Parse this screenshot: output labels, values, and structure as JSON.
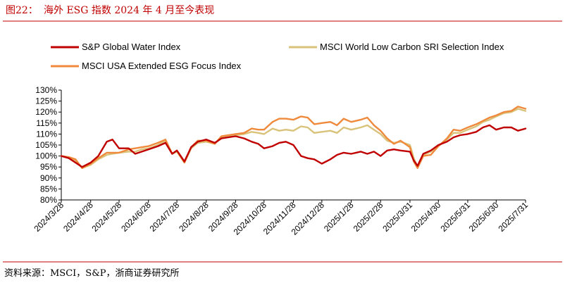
{
  "header": {
    "figure_label": "图22：",
    "title": "海外 ESG 指数 2024 年 4 月至今表现"
  },
  "footer": {
    "source": "资料来源：MSCI，S&P，浙商证券研究所"
  },
  "colors": {
    "accent": "#c00000",
    "series": [
      "#c00000",
      "#d9c37a",
      "#ef8a3c"
    ]
  },
  "chart_data": {
    "type": "line",
    "title": "",
    "xlabel": "",
    "ylabel": "",
    "ylim": [
      80,
      130
    ],
    "y_unit": "%",
    "y_ticks": [
      "80%",
      "85%",
      "90%",
      "95%",
      "100%",
      "105%",
      "110%",
      "115%",
      "120%",
      "125%",
      "130%"
    ],
    "x_ticks": [
      "2024/3/28",
      "2024/4/28",
      "2024/5/28",
      "2024/6/28",
      "2024/7/28",
      "2024/8/28",
      "2024/9/28",
      "2024/10/28",
      "2024/11/28",
      "2024/12/28",
      "2025/1/28",
      "2025/2/28",
      "2025/3/31",
      "2025/4/30",
      "2025/5/31",
      "2025/6/30",
      "2025/7/31"
    ],
    "grid": false,
    "legend_position": "top",
    "series": [
      {
        "name": "S&P Global Water Index",
        "points": [
          [
            "2024/3/28",
            100
          ],
          [
            "2024/4/5",
            99
          ],
          [
            "2024/4/12",
            97
          ],
          [
            "2024/4/19",
            95
          ],
          [
            "2024/4/28",
            97
          ],
          [
            "2024/5/6",
            100
          ],
          [
            "2024/5/15",
            106.5
          ],
          [
            "2024/5/21",
            107.5
          ],
          [
            "2024/5/28",
            103.5
          ],
          [
            "2024/6/7",
            103.5
          ],
          [
            "2024/6/14",
            101
          ],
          [
            "2024/6/21",
            102
          ],
          [
            "2024/6/28",
            103
          ],
          [
            "2024/7/8",
            104.5
          ],
          [
            "2024/7/16",
            106
          ],
          [
            "2024/7/23",
            101
          ],
          [
            "2024/7/28",
            102.5
          ],
          [
            "2024/8/5",
            97.5
          ],
          [
            "2024/8/12",
            104
          ],
          [
            "2024/8/19",
            106.5
          ],
          [
            "2024/8/28",
            107.5
          ],
          [
            "2024/9/6",
            106
          ],
          [
            "2024/9/13",
            108
          ],
          [
            "2024/9/20",
            108.5
          ],
          [
            "2024/9/28",
            109
          ],
          [
            "2024/10/7",
            108
          ],
          [
            "2024/10/15",
            106.5
          ],
          [
            "2024/10/22",
            105.5
          ],
          [
            "2024/10/28",
            103.5
          ],
          [
            "2024/11/6",
            104.5
          ],
          [
            "2024/11/13",
            106
          ],
          [
            "2024/11/20",
            106.5
          ],
          [
            "2024/11/28",
            105
          ],
          [
            "2024/12/6",
            100
          ],
          [
            "2024/12/13",
            99
          ],
          [
            "2024/12/20",
            98.5
          ],
          [
            "2024/12/28",
            96.5
          ],
          [
            "2025/1/6",
            98.5
          ],
          [
            "2025/1/13",
            100.5
          ],
          [
            "2025/1/20",
            101.5
          ],
          [
            "2025/1/28",
            101
          ],
          [
            "2025/2/7",
            102
          ],
          [
            "2025/2/14",
            101
          ],
          [
            "2025/2/21",
            102
          ],
          [
            "2025/2/28",
            100
          ],
          [
            "2025/3/7",
            102.5
          ],
          [
            "2025/3/14",
            103
          ],
          [
            "2025/3/21",
            102.5
          ],
          [
            "2025/3/31",
            102
          ],
          [
            "2025/4/4",
            98
          ],
          [
            "2025/4/8",
            95.5
          ],
          [
            "2025/4/14",
            101
          ],
          [
            "2025/4/22",
            102.5
          ],
          [
            "2025/4/30",
            105
          ],
          [
            "2025/5/9",
            106.5
          ],
          [
            "2025/5/16",
            108.5
          ],
          [
            "2025/5/23",
            109.5
          ],
          [
            "2025/5/31",
            110
          ],
          [
            "2025/6/9",
            111
          ],
          [
            "2025/6/16",
            113
          ],
          [
            "2025/6/23",
            114
          ],
          [
            "2025/6/30",
            112
          ],
          [
            "2025/7/8",
            113
          ],
          [
            "2025/7/16",
            113
          ],
          [
            "2025/7/23",
            111.5
          ],
          [
            "2025/7/31",
            112.5
          ]
        ]
      },
      {
        "name": "MSCI World Low Carbon SRI Selection Index",
        "points": [
          [
            "2024/3/28",
            100
          ],
          [
            "2024/4/5",
            99
          ],
          [
            "2024/4/12",
            98
          ],
          [
            "2024/4/19",
            94.5
          ],
          [
            "2024/4/28",
            96
          ],
          [
            "2024/5/6",
            98.5
          ],
          [
            "2024/5/15",
            100.5
          ],
          [
            "2024/5/21",
            101
          ],
          [
            "2024/5/28",
            101.5
          ],
          [
            "2024/6/7",
            102
          ],
          [
            "2024/6/14",
            102
          ],
          [
            "2024/6/21",
            103
          ],
          [
            "2024/6/28",
            103.5
          ],
          [
            "2024/7/8",
            105
          ],
          [
            "2024/7/16",
            107
          ],
          [
            "2024/7/23",
            101
          ],
          [
            "2024/7/28",
            102
          ],
          [
            "2024/8/5",
            97
          ],
          [
            "2024/8/12",
            103.5
          ],
          [
            "2024/8/19",
            106
          ],
          [
            "2024/8/28",
            106.5
          ],
          [
            "2024/9/6",
            105.5
          ],
          [
            "2024/9/13",
            108.5
          ],
          [
            "2024/9/20",
            109
          ],
          [
            "2024/9/28",
            109.5
          ],
          [
            "2024/10/7",
            110
          ],
          [
            "2024/10/15",
            111
          ],
          [
            "2024/10/22",
            110.5
          ],
          [
            "2024/10/28",
            110
          ],
          [
            "2024/11/6",
            112.5
          ],
          [
            "2024/11/13",
            111.5
          ],
          [
            "2024/11/20",
            112
          ],
          [
            "2024/11/28",
            111.5
          ],
          [
            "2024/12/6",
            113.5
          ],
          [
            "2024/12/13",
            113
          ],
          [
            "2024/12/20",
            110.5
          ],
          [
            "2024/12/28",
            111
          ],
          [
            "2025/1/6",
            111.5
          ],
          [
            "2025/1/13",
            110.5
          ],
          [
            "2025/1/20",
            113
          ],
          [
            "2025/1/28",
            112
          ],
          [
            "2025/2/7",
            113
          ],
          [
            "2025/2/14",
            114
          ],
          [
            "2025/2/21",
            112
          ],
          [
            "2025/2/28",
            110
          ],
          [
            "2025/3/7",
            107
          ],
          [
            "2025/3/14",
            106
          ],
          [
            "2025/3/21",
            106.5
          ],
          [
            "2025/3/31",
            105
          ],
          [
            "2025/4/4",
            99
          ],
          [
            "2025/4/8",
            95
          ],
          [
            "2025/4/14",
            100.5
          ],
          [
            "2025/4/22",
            102
          ],
          [
            "2025/4/30",
            104.5
          ],
          [
            "2025/5/9",
            107.5
          ],
          [
            "2025/5/16",
            110.5
          ],
          [
            "2025/5/23",
            110.5
          ],
          [
            "2025/5/31",
            112
          ],
          [
            "2025/6/9",
            113.5
          ],
          [
            "2025/6/16",
            115.5
          ],
          [
            "2025/6/23",
            116.5
          ],
          [
            "2025/6/30",
            118
          ],
          [
            "2025/7/8",
            119.5
          ],
          [
            "2025/7/16",
            120
          ],
          [
            "2025/7/23",
            121.5
          ],
          [
            "2025/7/31",
            120.5
          ]
        ]
      },
      {
        "name": "MSCI USA Extended ESG Focus Index",
        "points": [
          [
            "2024/3/28",
            100
          ],
          [
            "2024/4/5",
            99.5
          ],
          [
            "2024/4/12",
            98.5
          ],
          [
            "2024/4/19",
            94.5
          ],
          [
            "2024/4/28",
            96.5
          ],
          [
            "2024/5/6",
            99
          ],
          [
            "2024/5/15",
            101.5
          ],
          [
            "2024/5/21",
            101.5
          ],
          [
            "2024/5/28",
            101.5
          ],
          [
            "2024/6/7",
            103
          ],
          [
            "2024/6/14",
            103.5
          ],
          [
            "2024/6/21",
            104
          ],
          [
            "2024/6/28",
            104.5
          ],
          [
            "2024/7/8",
            106
          ],
          [
            "2024/7/16",
            107.5
          ],
          [
            "2024/7/23",
            101
          ],
          [
            "2024/7/28",
            102.5
          ],
          [
            "2024/8/5",
            97
          ],
          [
            "2024/8/12",
            104
          ],
          [
            "2024/8/19",
            107
          ],
          [
            "2024/8/28",
            107
          ],
          [
            "2024/9/6",
            105.5
          ],
          [
            "2024/9/13",
            109
          ],
          [
            "2024/9/20",
            109.5
          ],
          [
            "2024/9/28",
            110
          ],
          [
            "2024/10/7",
            110.5
          ],
          [
            "2024/10/15",
            112.5
          ],
          [
            "2024/10/22",
            112
          ],
          [
            "2024/10/28",
            112
          ],
          [
            "2024/11/6",
            115.5
          ],
          [
            "2024/11/13",
            117
          ],
          [
            "2024/11/20",
            117
          ],
          [
            "2024/11/28",
            116.5
          ],
          [
            "2024/12/6",
            118
          ],
          [
            "2024/12/13",
            117.5
          ],
          [
            "2024/12/20",
            114.5
          ],
          [
            "2024/12/28",
            115
          ],
          [
            "2025/1/6",
            115.5
          ],
          [
            "2025/1/13",
            114
          ],
          [
            "2025/1/20",
            117
          ],
          [
            "2025/1/28",
            115.5
          ],
          [
            "2025/2/7",
            116.5
          ],
          [
            "2025/2/14",
            117.5
          ],
          [
            "2025/2/21",
            114
          ],
          [
            "2025/2/28",
            111.5
          ],
          [
            "2025/3/7",
            108
          ],
          [
            "2025/3/14",
            105.5
          ],
          [
            "2025/3/21",
            107
          ],
          [
            "2025/3/31",
            104
          ],
          [
            "2025/4/4",
            97.5
          ],
          [
            "2025/4/8",
            94.5
          ],
          [
            "2025/4/14",
            100
          ],
          [
            "2025/4/22",
            100.5
          ],
          [
            "2025/4/30",
            104.5
          ],
          [
            "2025/5/9",
            108
          ],
          [
            "2025/5/16",
            112
          ],
          [
            "2025/5/23",
            111.5
          ],
          [
            "2025/5/31",
            113
          ],
          [
            "2025/6/9",
            114.5
          ],
          [
            "2025/6/16",
            116
          ],
          [
            "2025/6/23",
            117.5
          ],
          [
            "2025/6/30",
            118.5
          ],
          [
            "2025/7/8",
            120
          ],
          [
            "2025/7/16",
            120.5
          ],
          [
            "2025/7/23",
            122.5
          ],
          [
            "2025/7/31",
            121.5
          ]
        ]
      }
    ]
  }
}
